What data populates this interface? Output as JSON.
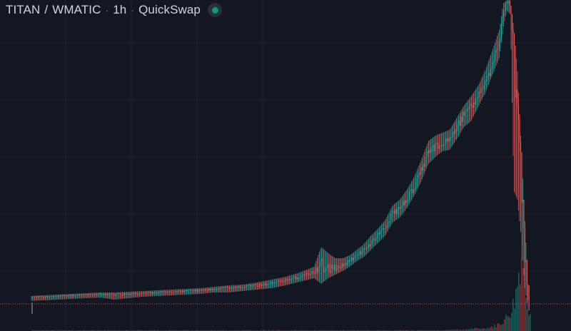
{
  "header": {
    "base": "TITAN",
    "divider": "/",
    "quote": "WMATIC",
    "interval": "1h",
    "exchange": "QuickSwap",
    "status_icon": "market-status-dot-icon"
  },
  "colors": {
    "background": "#131722",
    "grid": "#1f2330",
    "up": "#26a69a",
    "down": "#ef5350",
    "price_line": "#ef5350",
    "text": "#d1d4dc"
  },
  "chart_data": {
    "type": "candlestick",
    "title": "",
    "series": [
      {
        "x": [
          0,
          20,
          40,
          60,
          80,
          100,
          120,
          140,
          160,
          180,
          200,
          220,
          240,
          260,
          280,
          300,
          320,
          340,
          360,
          380,
          400,
          420,
          440,
          450,
          460,
          470,
          480,
          490,
          500,
          510,
          520,
          530,
          540,
          550,
          560,
          570,
          580,
          590,
          600,
          610,
          620,
          630,
          640,
          650,
          660,
          670,
          680,
          690,
          700,
          705,
          710,
          715,
          720,
          725,
          730,
          735,
          740
        ],
        "values": [
          420,
          418,
          417,
          416,
          415,
          414,
          413,
          412,
          413,
          412,
          411,
          410,
          409,
          408,
          407,
          405,
          403,
          402,
          400,
          397,
          393,
          388,
          382,
          372,
          377,
          375,
          372,
          366,
          358,
          350,
          340,
          330,
          318,
          300,
          292,
          280,
          262,
          240,
          215,
          205,
          200,
          195,
          180,
          160,
          150,
          135,
          115,
          90,
          60,
          20,
          2,
          5,
          60,
          150,
          250,
          350,
          420
        ],
        "lows": [
          425,
          423,
          422,
          421,
          420,
          419,
          418,
          417,
          420,
          418,
          416,
          415,
          414,
          413,
          412,
          410,
          410,
          408,
          406,
          404,
          400,
          395,
          390,
          398,
          390,
          385,
          380,
          374,
          366,
          360,
          350,
          340,
          330,
          312,
          305,
          292,
          275,
          255,
          230,
          220,
          212,
          210,
          195,
          178,
          170,
          150,
          130,
          105,
          80,
          40,
          15,
          20,
          268,
          280,
          330,
          400,
          435
        ],
        "highs": [
          418,
          416,
          415,
          414,
          413,
          412,
          411,
          410,
          410,
          409,
          408,
          407,
          406,
          405,
          404,
          402,
          400,
          399,
          396,
          392,
          388,
          382,
          374,
          346,
          355,
          362,
          362,
          358,
          350,
          342,
          330,
          320,
          308,
          288,
          280,
          266,
          248,
          225,
          198,
          190,
          186,
          182,
          165,
          148,
          135,
          120,
          98,
          70,
          40,
          5,
          0,
          0,
          40,
          100,
          200,
          300,
          400
        ]
      }
    ],
    "volume": [
      1,
      1,
      1,
      1,
      1,
      1,
      1,
      1,
      1,
      1,
      1,
      1,
      1,
      1,
      1,
      1,
      1,
      1,
      1,
      1,
      1,
      1,
      1,
      1,
      1,
      1,
      1,
      1,
      1,
      1,
      1,
      1,
      1,
      1,
      1,
      1,
      1,
      1,
      1,
      1,
      1,
      2,
      2,
      2,
      3,
      3,
      4,
      6,
      10,
      14,
      20,
      28,
      40,
      70,
      120,
      60,
      30
    ],
    "current_price_level": 426,
    "grid": true
  }
}
